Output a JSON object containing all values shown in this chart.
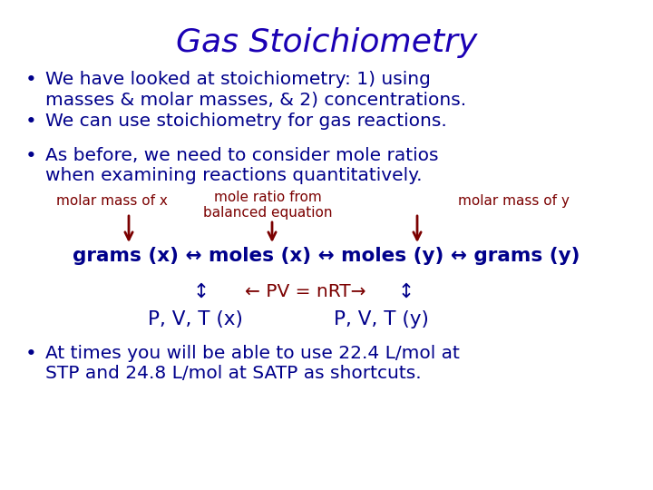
{
  "title": "Gas Stoichiometry",
  "title_color": "#1a00b4",
  "title_fontsize": 26,
  "bullet_color": "#00008B",
  "bullet_fontsize": 14.5,
  "red_color": "#7B0000",
  "dark_navy": "#00008B",
  "background_color": "#FFFFFF",
  "bullet1": "We have looked at stoichiometry: 1) using",
  "bullet1b": "masses & molar masses, & 2) concentrations.",
  "bullet2": "We can use stoichiometry for gas reactions.",
  "bullet3": "As before, we need to consider mole ratios",
  "bullet3b": "when examining reactions quantitatively.",
  "label_molar_x": "molar mass of x",
  "label_mole_ratio_1": "mole ratio from",
  "label_mole_ratio_2": "balanced equation",
  "label_molar_y": "molar mass of y",
  "flow_line": "grams (x) ↔ moles (x) ↔ moles (y) ↔ grams (y)",
  "bullet_last1": "At times you will be able to use 22.4 L/mol at",
  "bullet_last2": "STP and 24.8 L/mol at SATP as shortcuts."
}
